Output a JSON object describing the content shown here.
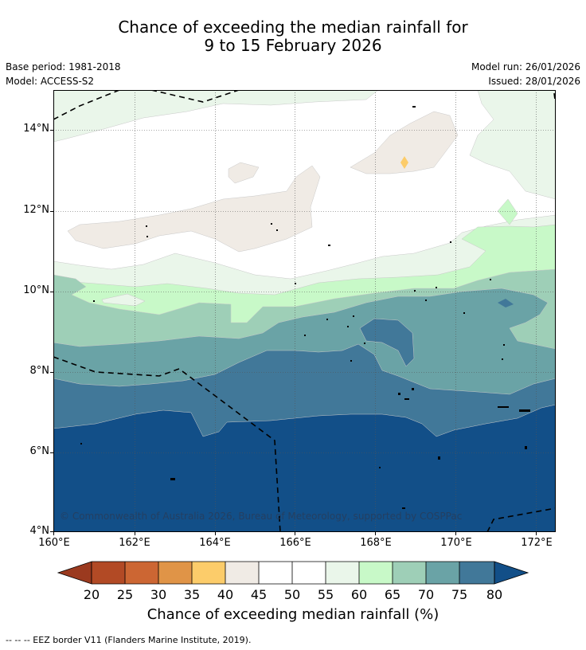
{
  "header": {
    "title_line1": "Chance of exceeding the median rainfall for",
    "title_line2": "9 to 15 February 2026",
    "base_period": "Base period: 1981-2018",
    "model": "Model: ACCESS-S2",
    "model_run": "Model run: 26/01/2026",
    "issued": "Issued: 28/01/2026"
  },
  "map": {
    "lon_range_deg": [
      160,
      172.5
    ],
    "lat_range_deg": [
      4,
      15
    ],
    "x_ticks": [
      "160°E",
      "162°E",
      "164°E",
      "166°E",
      "168°E",
      "170°E",
      "172°E"
    ],
    "y_ticks": [
      "14°N",
      "12°N",
      "10°N",
      "8°N",
      "6°N",
      "4°N"
    ],
    "copyright": "© Commonwealth of Australia 2026, Bureau of Meteorology, supported by COSPPac"
  },
  "colorbar": {
    "title": "Chance of exceeding median rainfall (%)",
    "labels": [
      "20",
      "25",
      "30",
      "35",
      "40",
      "45",
      "50",
      "55",
      "60",
      "65",
      "70",
      "75",
      "80"
    ],
    "colors": {
      "below20": "#9b3a1f",
      "c20_25": "#b24a25",
      "c25_30": "#cc6633",
      "c30_35": "#e09447",
      "c35_40": "#fccc6a",
      "c40_45": "#f0ebe5",
      "c45_50": "#ffffff",
      "c50_55": "#ffffff",
      "c55_60": "#eaf6ea",
      "c60_65": "#c8f9c8",
      "c65_70": "#9ecfb7",
      "c70_75": "#6aa3a6",
      "c75_80": "#417899",
      "above80": "#124f88"
    }
  },
  "legend": {
    "eez_text": "--  --  -- EEZ border V11 (Flanders Marine Institute, 2019)."
  }
}
